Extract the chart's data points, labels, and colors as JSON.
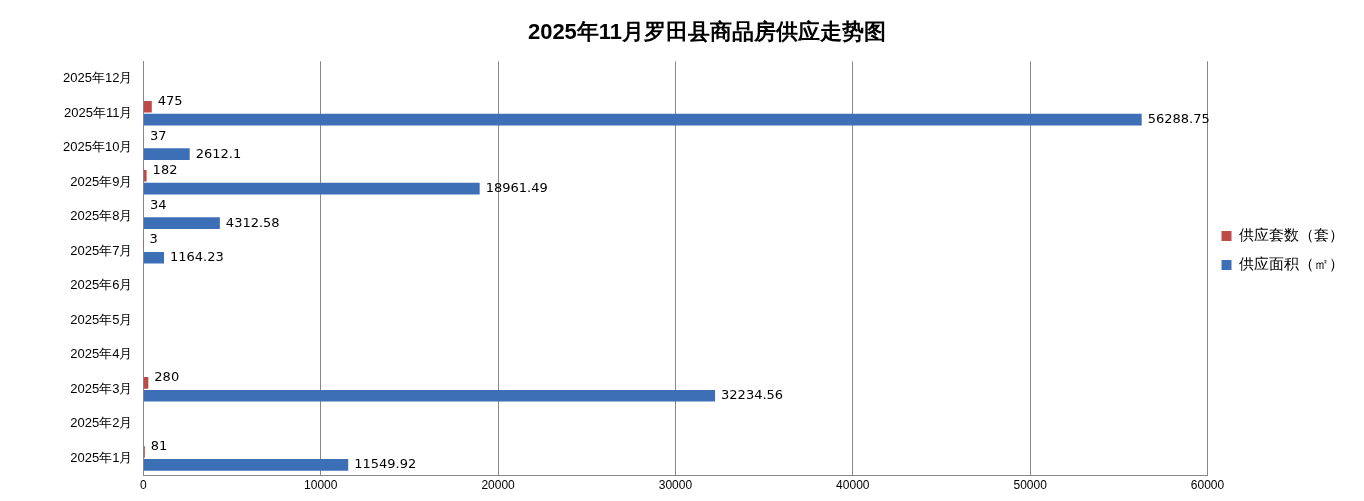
{
  "chart_data": {
    "type": "bar",
    "orientation": "horizontal",
    "title": "2025年11月罗田县商品房供应走势图",
    "categories": [
      "2025年12月",
      "2025年11月",
      "2025年10月",
      "2025年9月",
      "2025年8月",
      "2025年7月",
      "2025年6月",
      "2025年5月",
      "2025年4月",
      "2025年3月",
      "2025年2月",
      "2025年1月"
    ],
    "series": [
      {
        "name": "供应套数（套）",
        "color": "#be4b48",
        "values": [
          null,
          475,
          37,
          182,
          34,
          3,
          null,
          null,
          null,
          280,
          null,
          81
        ]
      },
      {
        "name": "供应面积（㎡）",
        "color": "#3d6fb6",
        "values": [
          null,
          56288.75,
          2612.1,
          18961.49,
          4312.58,
          1164.23,
          null,
          null,
          null,
          32234.56,
          null,
          11549.92
        ]
      }
    ],
    "xlim": [
      0,
      60000
    ],
    "xticks": [
      0,
      10000,
      20000,
      30000,
      40000,
      50000,
      60000
    ],
    "grid": "x",
    "legend": "right",
    "data_labels": true
  }
}
